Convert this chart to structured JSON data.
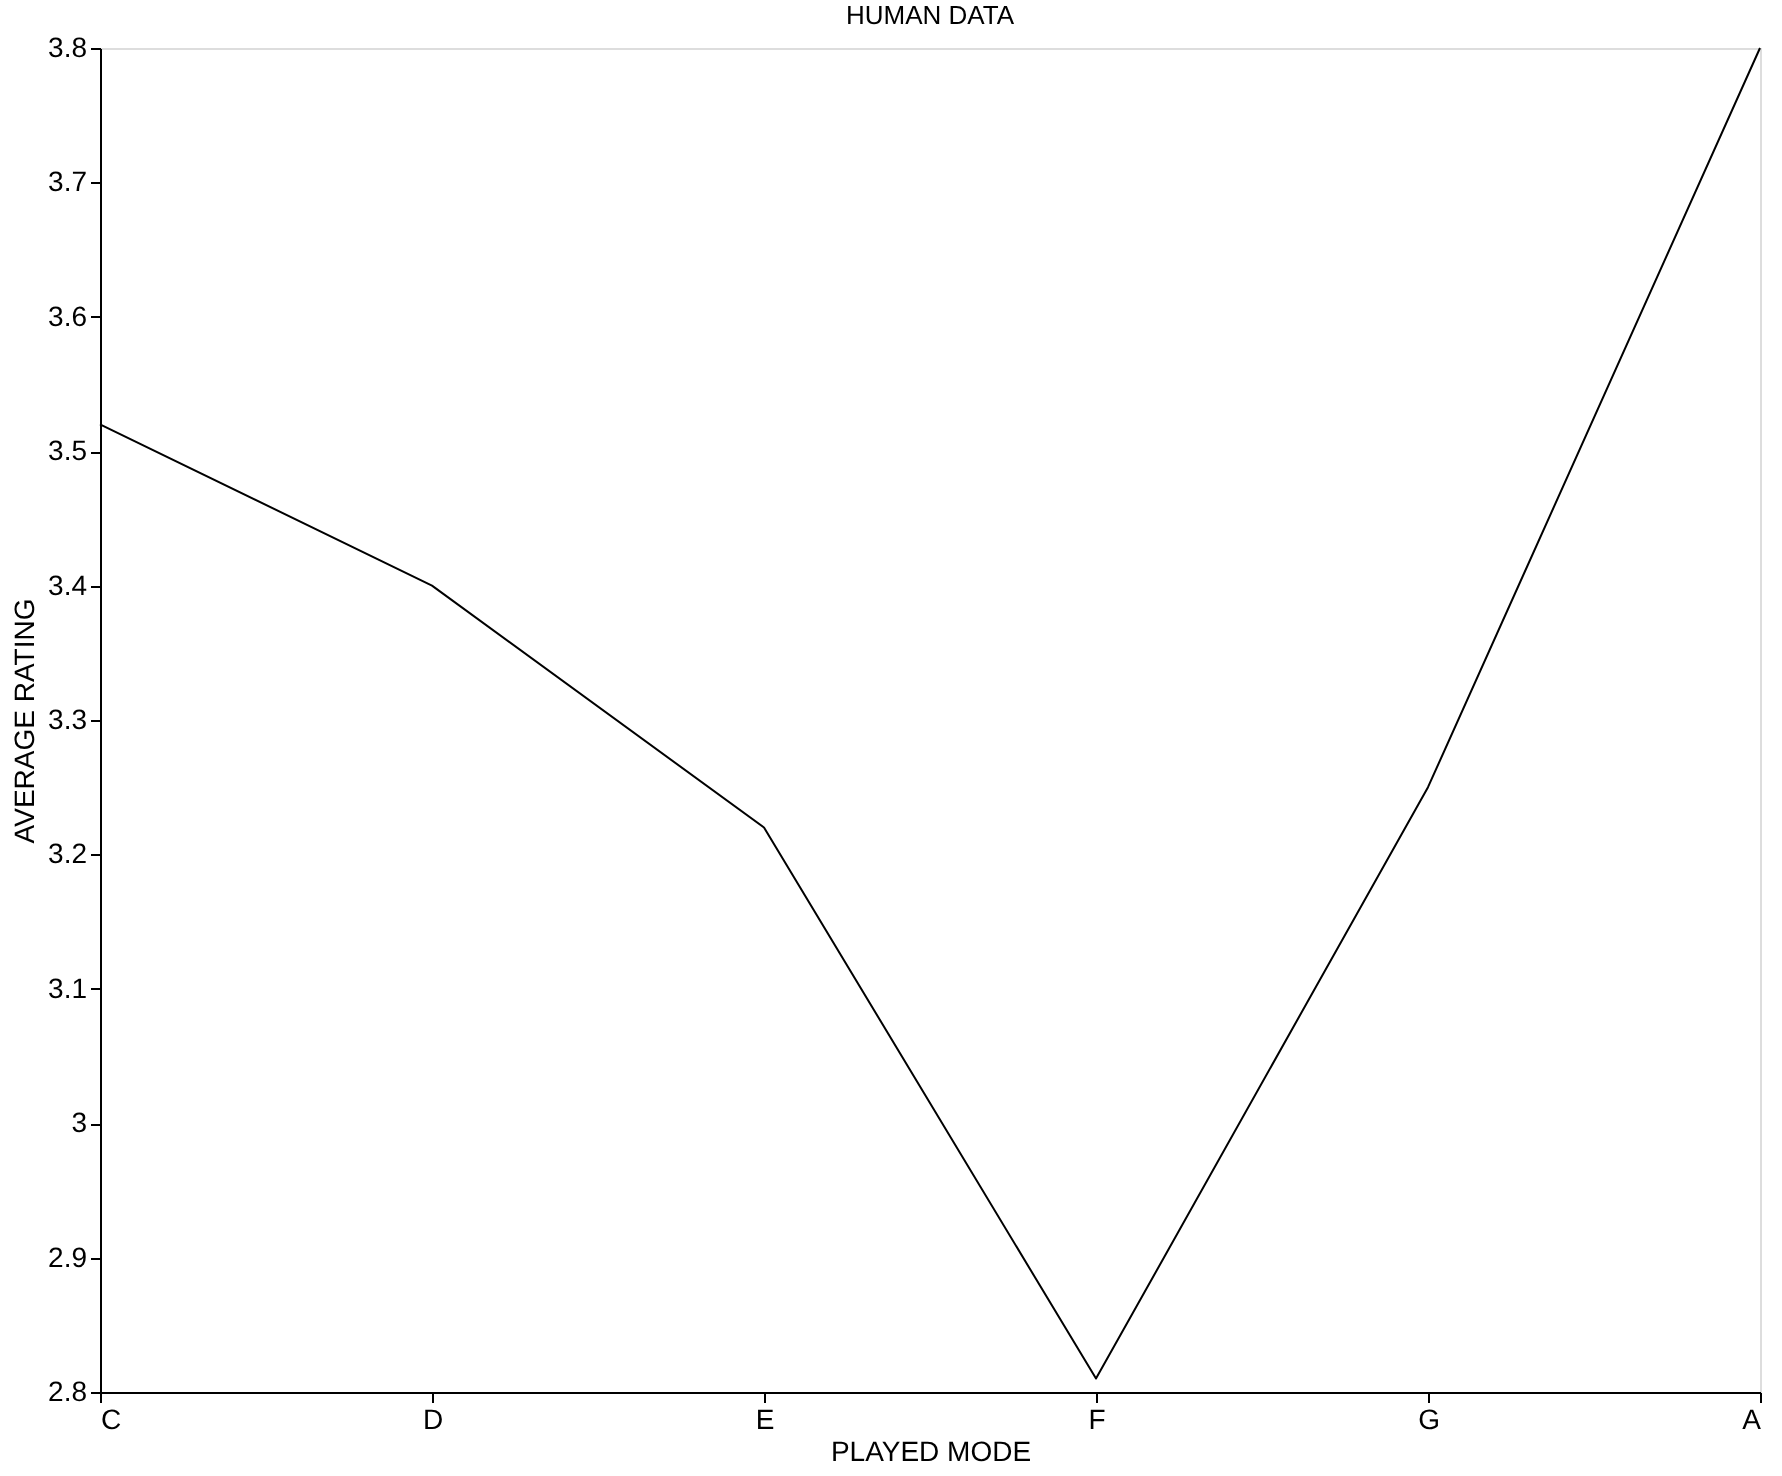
{
  "chart_data": {
    "type": "line",
    "title": "HUMAN DATA",
    "xlabel": "PLAYED MODE",
    "ylabel": "AVERAGE RATING",
    "categories": [
      "C",
      "D",
      "E",
      "F",
      "G",
      "A"
    ],
    "series": [
      {
        "color": "#000000",
        "values": [
          3.52,
          3.4,
          3.22,
          2.81,
          3.25,
          3.8
        ]
      }
    ],
    "ylim": [
      2.8,
      3.8
    ],
    "yticks": [
      2.8,
      2.9,
      3,
      3.1,
      3.2,
      3.3,
      3.4,
      3.5,
      3.6,
      3.7,
      3.8
    ],
    "grid": false
  }
}
